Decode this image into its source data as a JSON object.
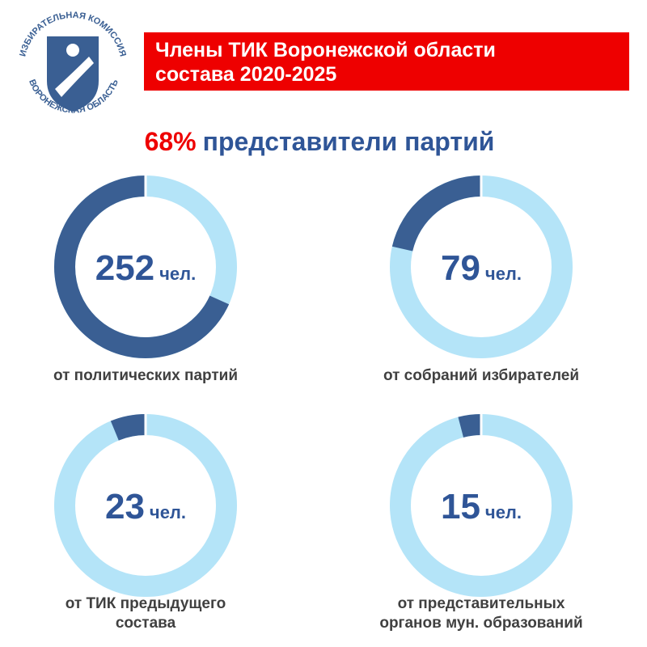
{
  "logo": {
    "top_text": "ИЗБИРАТЕЛЬНАЯ КОМИССИЯ",
    "bottom_text": "ВОРОНЕЖСКАЯ ОБЛАСТЬ"
  },
  "header": {
    "title_lines": [
      "Члены ТИК Воронежской области",
      "состава 2020-2025"
    ]
  },
  "headline": {
    "value_text": "68%",
    "text": "представители партий"
  },
  "chart_data": [
    {
      "type": "donut",
      "values": [
        252
      ],
      "unit": "чел.",
      "caption": [
        "от политических партий"
      ],
      "color": "#3a5f93",
      "rest_color": "#b4e4f8"
    },
    {
      "type": "donut",
      "values": [
        79
      ],
      "unit": "чел.",
      "caption": [
        "от собраний избирателей"
      ],
      "color": "#3a5f93",
      "rest_color": "#b4e4f8"
    },
    {
      "type": "donut",
      "values": [
        23
      ],
      "unit": "чел.",
      "caption": [
        "от ТИК предыдущего",
        "состава"
      ],
      "color": "#3a5f93",
      "rest_color": "#b4e4f8"
    },
    {
      "type": "donut",
      "values": [
        15
      ],
      "unit": "чел.",
      "caption": [
        "от представительных",
        "органов мун. образований"
      ],
      "color": "#3a5f93",
      "rest_color": "#b4e4f8"
    }
  ]
}
